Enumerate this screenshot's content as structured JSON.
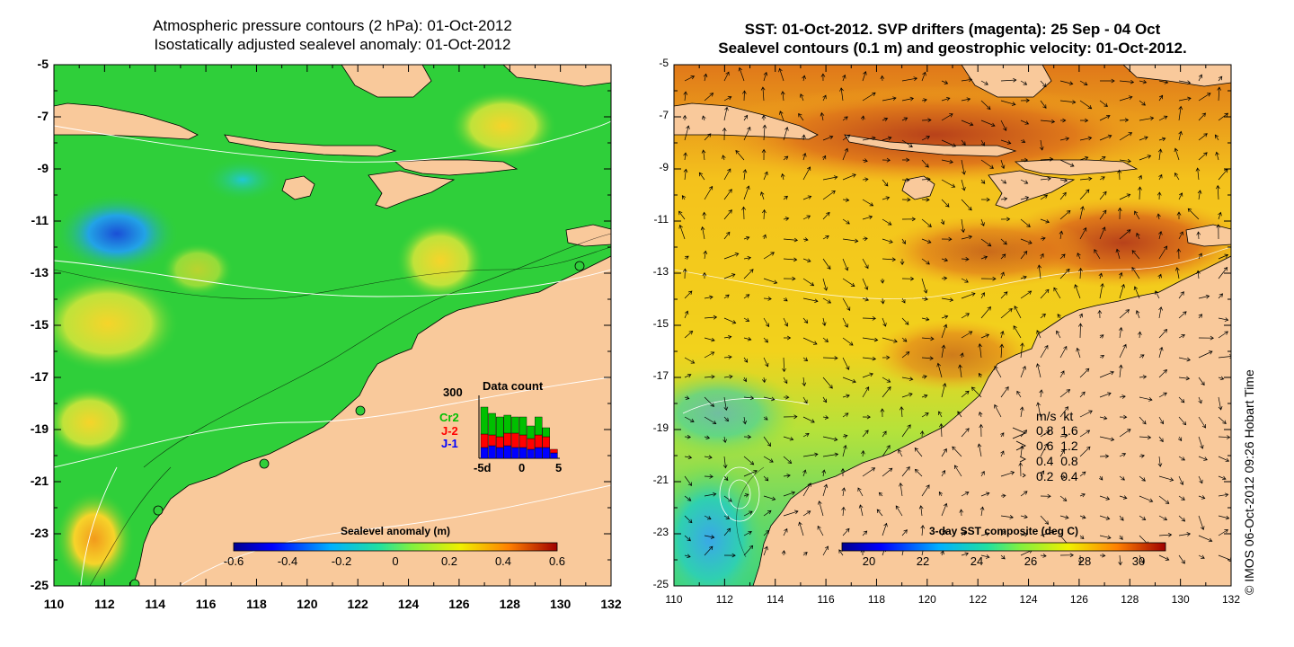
{
  "left_panel": {
    "title_line1": "Atmospheric pressure contours (2 hPa): 01-Oct-2012",
    "title_line2": "Isostatically adjusted sealevel anomaly: 01-Oct-2012",
    "y_ticks": [
      "-5",
      "-7",
      "-9",
      "-11",
      "-13",
      "-15",
      "-17",
      "-19",
      "-21",
      "-23",
      "-25"
    ],
    "x_ticks": [
      "110",
      "112",
      "114",
      "116",
      "118",
      "120",
      "122",
      "124",
      "126",
      "128",
      "130",
      "132"
    ],
    "colorbar": {
      "title": "Sealevel anomaly (m)",
      "ticks": [
        "-0.6",
        "-0.4",
        "-0.2",
        "0",
        "0.2",
        "0.4",
        "0.6"
      ]
    },
    "data_count": {
      "title": "Data count",
      "y_max_label": "300",
      "x_min_label": "-5d",
      "x_mid_label": "0",
      "x_max_label": "5",
      "series": [
        {
          "name": "Cr2",
          "color": "#00c000"
        },
        {
          "name": "J-2",
          "color": "#ff0000"
        },
        {
          "name": "J-1",
          "color": "#0000ff"
        }
      ]
    }
  },
  "right_panel": {
    "title_line1": "SST: 01-Oct-2012. SVP drifters (magenta): 25 Sep - 04 Oct",
    "title_line2": "Sealevel contours (0.1 m) and geostrophic velocity: 01-Oct-2012.",
    "y_ticks": [
      "-5",
      "-7",
      "-9",
      "-11",
      "-13",
      "-15",
      "-17",
      "-19",
      "-21",
      "-23",
      "-25"
    ],
    "x_ticks": [
      "110",
      "112",
      "114",
      "116",
      "118",
      "120",
      "122",
      "124",
      "126",
      "128",
      "130",
      "132"
    ],
    "colorbar": {
      "title": "3-day SST composite (deg C)",
      "ticks": [
        "20",
        "22",
        "24",
        "26",
        "28",
        "30"
      ]
    },
    "velocity_legend": {
      "header": "m/s  kt",
      "rows": [
        "0.8  1.6",
        "0.6  1.2",
        "0.4  0.8",
        "0.2  0.4"
      ]
    }
  },
  "copyright": "© IMOS 06-Oct-2012 09:26 Hobart Time",
  "colors": {
    "land": "#f9c99b",
    "ocean_left_base": "#2fcf3a",
    "ocean_right_base": "#f2a81c"
  }
}
